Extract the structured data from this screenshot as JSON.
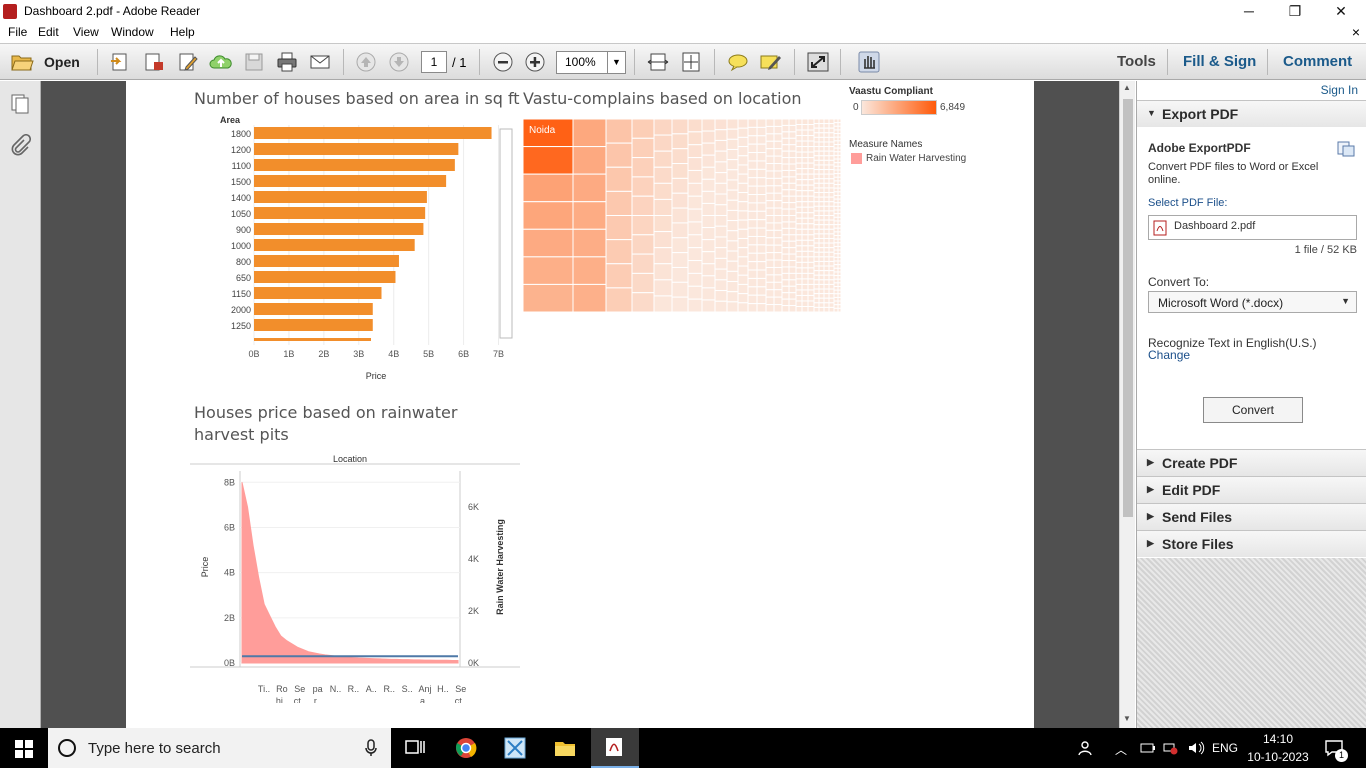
{
  "window": {
    "title": "Dashboard 2.pdf - Adobe Reader",
    "minimize": "─",
    "restore": "❐",
    "close": "✕"
  },
  "menu": {
    "items": [
      "File",
      "Edit",
      "View",
      "Window",
      "Help"
    ],
    "close_doc": "×"
  },
  "toolbar": {
    "open_label": "Open",
    "page_current": "1",
    "page_total": "/ 1",
    "zoom": "100%",
    "tools_tab": "Tools",
    "fill_sign_tab": "Fill & Sign",
    "comment_tab": "Comment"
  },
  "right_pane": {
    "sign_in": "Sign In",
    "export_header": "Export PDF",
    "export_title": "Adobe ExportPDF",
    "export_desc": "Convert PDF files to Word or Excel online.",
    "select_label": "Select PDF File:",
    "file_name": "Dashboard 2.pdf",
    "file_info": "1 file / 52 KB",
    "convert_to_label": "Convert To:",
    "convert_to_value": "Microsoft Word (*.docx)",
    "recognize_text": "Recognize Text in English(U.S.)",
    "change_link": "Change",
    "convert_button": "Convert",
    "sections": [
      "Create PDF",
      "Edit PDF",
      "Send Files",
      "Store Files"
    ]
  },
  "taskbar": {
    "search_placeholder": "Type here to search",
    "lang": "ENG",
    "time": "14:10",
    "date": "10-10-2023",
    "notification_count": "1"
  },
  "chart_data": [
    {
      "type": "bar",
      "title": "Number of houses based on area in sq ft",
      "category_header": "Area",
      "categories": [
        "1800",
        "1200",
        "1100",
        "1500",
        "1400",
        "1050",
        "900",
        "1000",
        "800",
        "650",
        "1150",
        "2000",
        "1250"
      ],
      "values": [
        6.8,
        5.85,
        5.75,
        5.5,
        4.95,
        4.9,
        4.85,
        4.6,
        4.15,
        4.05,
        3.65,
        3.4,
        3.4
      ],
      "xlabel": "Price",
      "xticks": [
        "0B",
        "1B",
        "2B",
        "3B",
        "4B",
        "5B",
        "6B",
        "7B"
      ],
      "xlim": [
        0,
        7.3
      ],
      "bar_color": "#f28e2b"
    },
    {
      "type": "heatmap",
      "title": "Vastu-complains based on location",
      "first_label": "Noida",
      "legend_title": "Vaastu Compliant",
      "legend_min": "0",
      "legend_max": "6,849",
      "legend2_title": "Measure Names",
      "legend2_item": "Rain Water Harvesting",
      "color_low": "#fbe7dc",
      "color_high": "#ff5a0a"
    },
    {
      "type": "area",
      "title": "Houses price based on rainwater harvest pits",
      "header": "Location",
      "ylabel": "Price",
      "y2label": "Rain Water Harvesting",
      "yticks": [
        "0B",
        "2B",
        "4B",
        "6B",
        "8B"
      ],
      "y2ticks": [
        "0K",
        "2K",
        "4K",
        "6K"
      ],
      "ylim": [
        0,
        8.5
      ],
      "series": [
        {
          "name": "Price",
          "color": "#ff9d9a",
          "values": [
            8.0,
            6.9,
            5.2,
            3.8,
            2.6,
            2.1,
            1.6,
            1.2,
            1.0,
            0.85,
            0.7,
            0.6,
            0.5,
            0.45,
            0.4,
            0.36,
            0.33,
            0.3,
            0.28,
            0.26,
            0.24,
            0.22,
            0.21,
            0.2,
            0.19,
            0.18,
            0.17,
            0.16,
            0.16,
            0.15,
            0.15,
            0.14,
            0.14,
            0.13,
            0.13,
            0.12,
            0.12,
            0.12,
            0.11,
            0.11
          ]
        },
        {
          "name": "Rain Water Harvesting",
          "color": "#4e79a7",
          "values": [
            0.3,
            0.3,
            0.3,
            0.3,
            0.3,
            0.3,
            0.3,
            0.3,
            0.3,
            0.3,
            0.3,
            0.3,
            0.3,
            0.3,
            0.3,
            0.3,
            0.3,
            0.3,
            0.3,
            0.3,
            0.3,
            0.3,
            0.3,
            0.3,
            0.3,
            0.3,
            0.3,
            0.3,
            0.3,
            0.3,
            0.3,
            0.3,
            0.3,
            0.3,
            0.3,
            0.3,
            0.3,
            0.3,
            0.3,
            0.3
          ]
        }
      ],
      "xticks_line1": [
        "Ti..",
        "Ro",
        "Se",
        "pa",
        "N..",
        "R..",
        "A..",
        "R..",
        "S..",
        "Anj",
        "H..",
        "Se"
      ],
      "xticks_line2": [
        "",
        "hi..",
        "ct..",
        "r..",
        "",
        "",
        "",
        "",
        "",
        "a..",
        "",
        "ct.."
      ]
    }
  ]
}
